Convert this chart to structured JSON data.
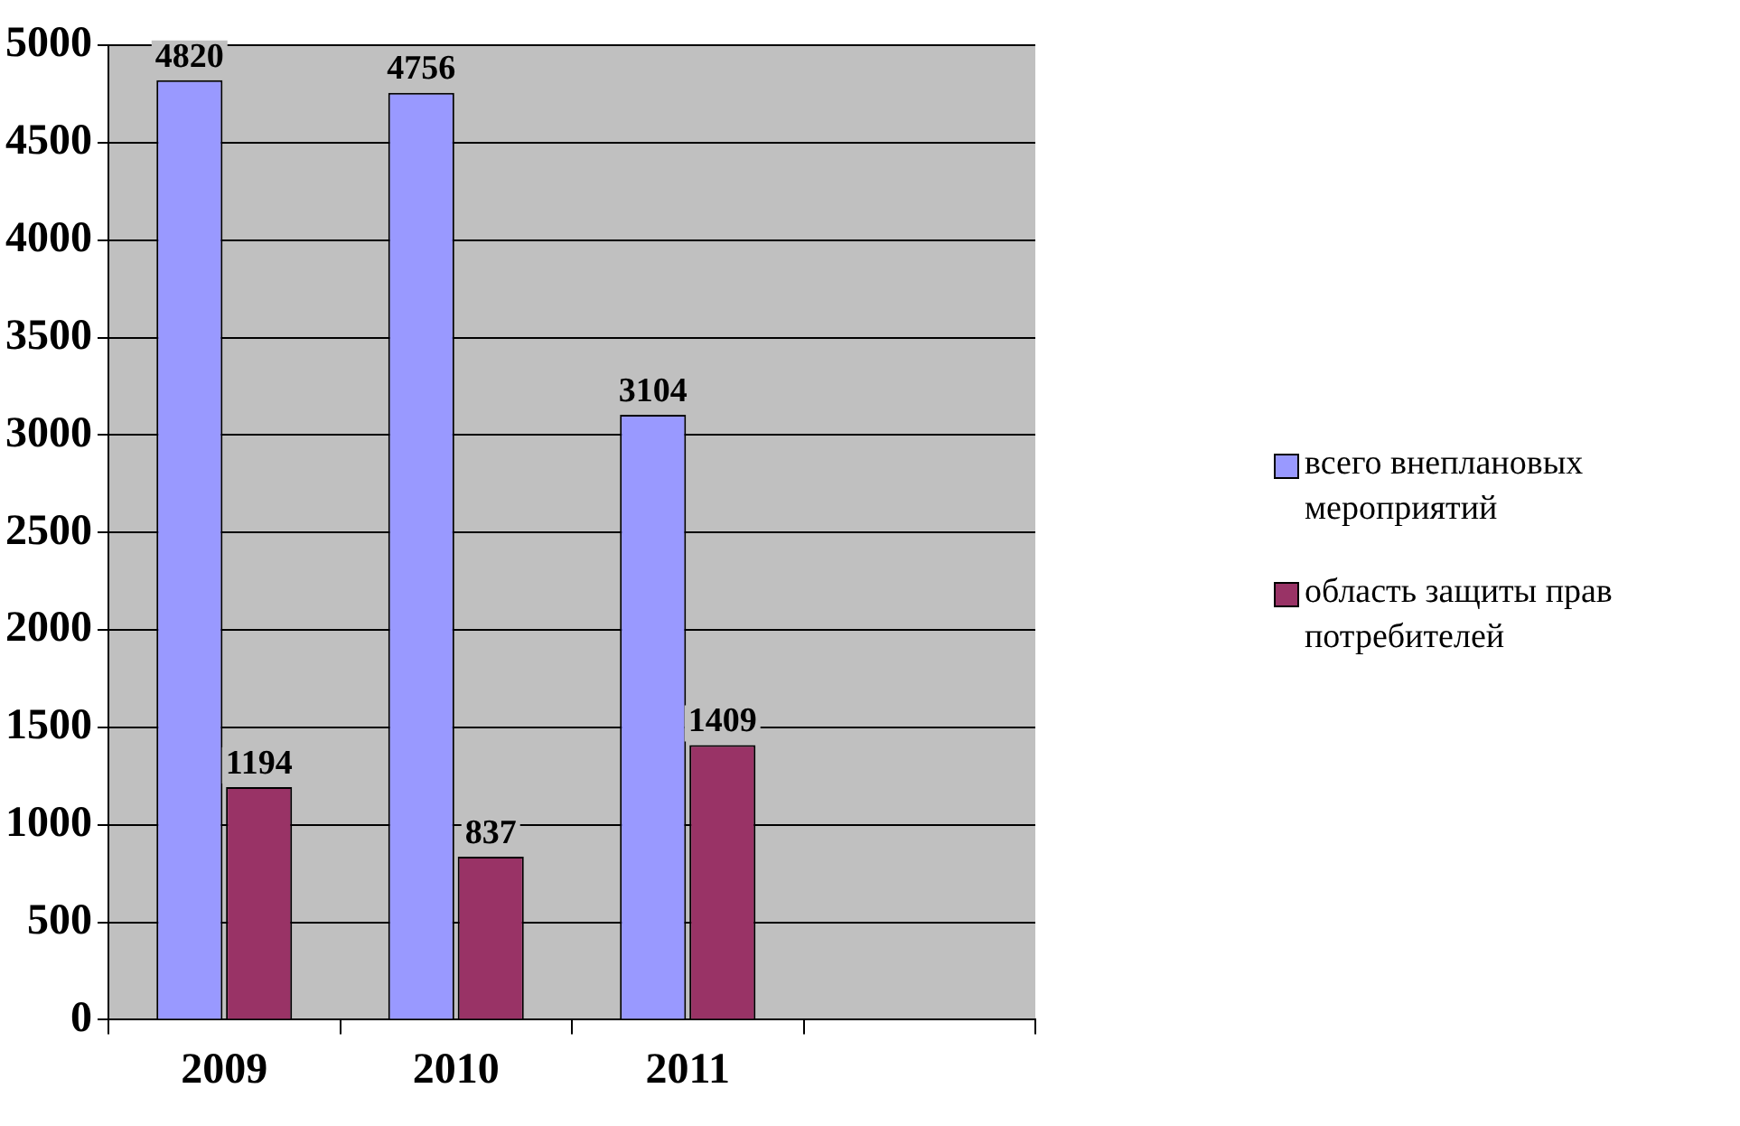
{
  "chart_data": {
    "type": "bar",
    "categories": [
      "2009",
      "2010",
      "2011",
      null
    ],
    "series": [
      {
        "name": "всего внеплановых мероприятий",
        "color": "#9999ff",
        "values": [
          4820,
          4756,
          3104,
          null
        ]
      },
      {
        "name": "область защиты прав потребителей",
        "color": "#993366",
        "values": [
          1194,
          837,
          1409,
          null
        ]
      }
    ],
    "ylim": [
      0,
      5000
    ],
    "yticks": [
      0,
      500,
      1000,
      1500,
      2000,
      2500,
      3000,
      3500,
      4000,
      4500,
      5000
    ],
    "grid": "y",
    "legend": "right",
    "data_labels": true
  }
}
